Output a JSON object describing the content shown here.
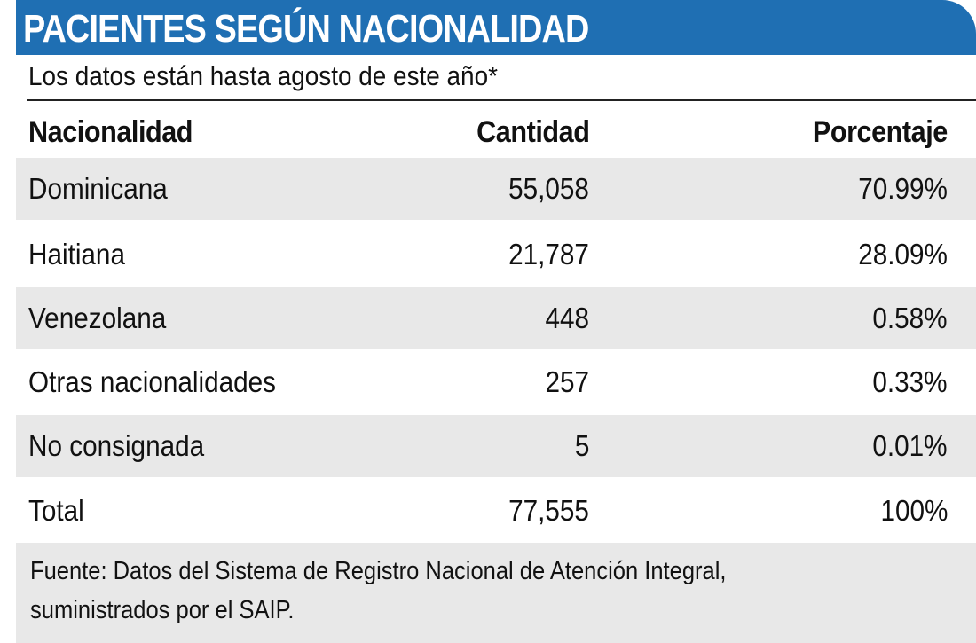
{
  "title": "PACIENTES SEGÚN NACIONALIDAD",
  "subtitle": "Los datos están hasta agosto de este año*",
  "table": {
    "headers": [
      "Nacionalidad",
      "Cantidad",
      "Porcentaje"
    ],
    "rows": [
      [
        "Dominicana",
        "55,058",
        "70.99%"
      ],
      [
        "Haitiana",
        "21,787",
        "28.09%"
      ],
      [
        "Venezolana",
        "448",
        "0.58%"
      ],
      [
        "Otras nacionalidades",
        "257",
        "0.33%"
      ],
      [
        "No consignada",
        "5",
        "0.01%"
      ],
      [
        "Total",
        "77,555",
        "100%"
      ]
    ]
  },
  "footer": {
    "line1": "Fuente: Datos del Sistema de Registro Nacional de Atención Integral,",
    "line2": "suministrados por el SAIP."
  },
  "colors": {
    "title_bar": "#1f6fb3",
    "row_shade": "#e8e8e8"
  }
}
